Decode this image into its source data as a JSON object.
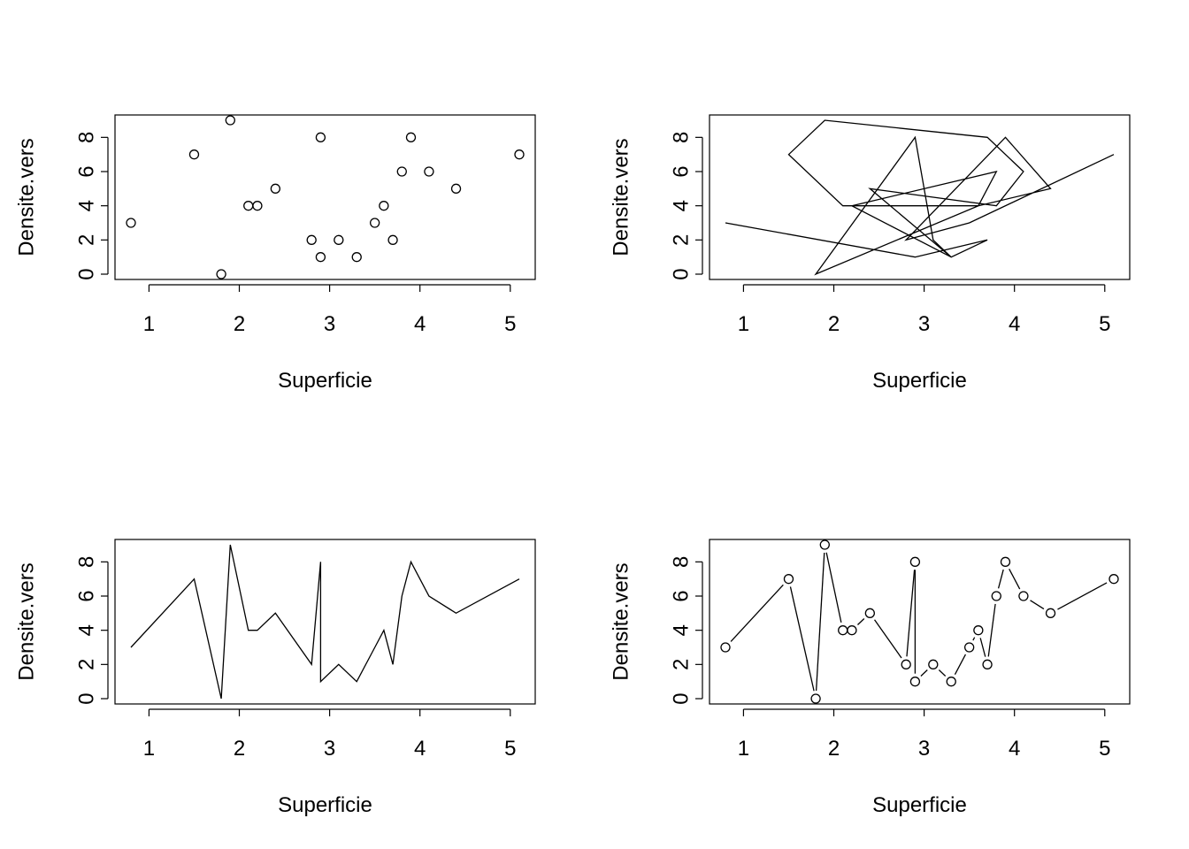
{
  "chart_data": [
    {
      "type": "scatter",
      "xlabel": "Superficie",
      "ylabel": "Densite.vers",
      "xlim": [
        0.8,
        5.1
      ],
      "ylim": [
        0,
        9
      ],
      "xticks": [
        "1",
        "2",
        "3",
        "4",
        "5"
      ],
      "yticks": [
        "0",
        "2",
        "4",
        "6",
        "8"
      ],
      "x": [
        0.8,
        3.9,
        2.9,
        1.5,
        2.1,
        1.9,
        1.8,
        3.6,
        3.8,
        2.2,
        3.3,
        2.4,
        3.7,
        4.1,
        2.8,
        3.1,
        3.5,
        2.9,
        4.4,
        5.1
      ],
      "y": [
        3,
        8,
        8,
        7,
        4,
        9,
        0,
        4,
        6,
        4,
        1,
        5,
        2,
        6,
        2,
        2,
        3,
        1,
        5,
        7
      ]
    },
    {
      "type": "line",
      "xlabel": "Superficie",
      "ylabel": "Densite.vers",
      "xlim": [
        0.8,
        5.1
      ],
      "ylim": [
        0,
        9
      ],
      "xticks": [
        "1",
        "2",
        "3",
        "4",
        "5"
      ],
      "yticks": [
        "0",
        "2",
        "4",
        "6",
        "8"
      ],
      "x": [
        0.8,
        2.9,
        3.7,
        3.3,
        3.1,
        2.9,
        1.8,
        3.6,
        3.8,
        2.2,
        3.3,
        2.4,
        3.8,
        4.1,
        3.7,
        1.9,
        1.5,
        2.1,
        3.6,
        4.4,
        3.9,
        2.8,
        3.5,
        5.1
      ],
      "y": [
        3,
        1,
        2,
        1,
        2,
        8,
        0,
        4,
        6,
        4,
        1,
        5,
        4,
        6,
        8,
        9,
        7,
        4,
        4,
        5,
        8,
        2,
        3,
        7
      ]
    },
    {
      "type": "line",
      "xlabel": "Superficie",
      "ylabel": "Densite.vers",
      "xlim": [
        0.8,
        5.1
      ],
      "ylim": [
        0,
        9
      ],
      "xticks": [
        "1",
        "2",
        "3",
        "4",
        "5"
      ],
      "yticks": [
        "0",
        "2",
        "4",
        "6",
        "8"
      ],
      "x": [
        0.8,
        1.5,
        1.8,
        1.9,
        2.1,
        2.2,
        2.4,
        2.8,
        2.9,
        2.9,
        3.1,
        3.3,
        3.5,
        3.6,
        3.7,
        3.8,
        3.9,
        4.1,
        4.4,
        5.1
      ],
      "y": [
        3,
        7,
        0,
        9,
        4,
        4,
        5,
        2,
        8,
        1,
        2,
        1,
        3,
        4,
        2,
        6,
        8,
        6,
        5,
        7
      ]
    },
    {
      "type": "line",
      "markers": "points-and-lines",
      "xlabel": "Superficie",
      "ylabel": "Densite.vers",
      "xlim": [
        0.8,
        5.1
      ],
      "ylim": [
        0,
        9
      ],
      "xticks": [
        "1",
        "2",
        "3",
        "4",
        "5"
      ],
      "yticks": [
        "0",
        "2",
        "4",
        "6",
        "8"
      ],
      "x": [
        0.8,
        1.5,
        1.8,
        1.9,
        2.1,
        2.2,
        2.4,
        2.8,
        2.9,
        2.9,
        3.1,
        3.3,
        3.5,
        3.6,
        3.7,
        3.8,
        3.9,
        4.1,
        4.4,
        5.1
      ],
      "y": [
        3,
        7,
        0,
        9,
        4,
        4,
        5,
        2,
        8,
        1,
        2,
        1,
        3,
        4,
        2,
        6,
        8,
        6,
        5,
        7
      ]
    }
  ]
}
